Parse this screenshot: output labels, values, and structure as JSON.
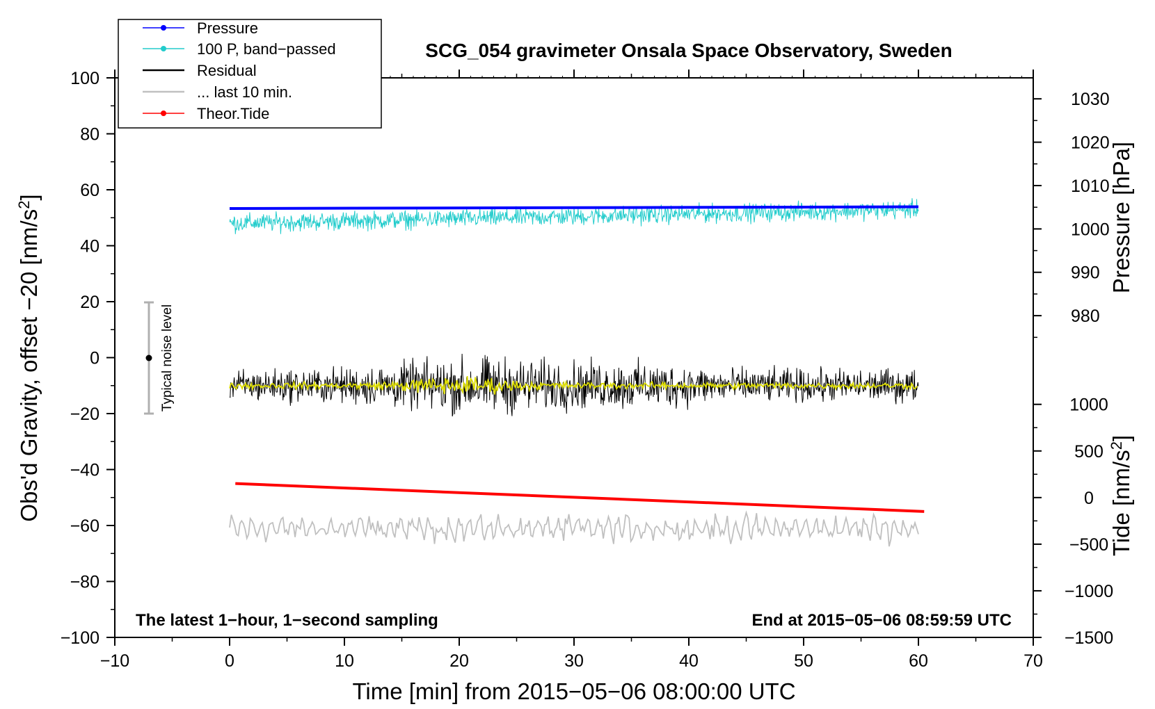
{
  "chart_data": {
    "type": "line",
    "title": "SCG_054 gravimeter Onsala Space Observatory, Sweden",
    "xlabel": "Time [min] from 2015−05−06 08:00:00 UTC",
    "ylabel_prefix": "Obs'd Gravity, offset −20 [nm/s",
    "ylabel_suffix": "]",
    "ylabel_sup": "2",
    "xlim": [
      -10,
      70
    ],
    "ylim": [
      -100,
      100
    ],
    "x_ticks": [
      -10,
      0,
      10,
      20,
      30,
      40,
      50,
      60,
      70
    ],
    "x_tick_labels": [
      "−10",
      "0",
      "10",
      "20",
      "30",
      "40",
      "50",
      "60",
      "70"
    ],
    "y_ticks": [
      -100,
      -80,
      -60,
      -40,
      -20,
      0,
      20,
      40,
      60,
      80,
      100
    ],
    "y_tick_labels": [
      "−100",
      "−80",
      "−60",
      "−40",
      "−20",
      "0",
      "20",
      "40",
      "60",
      "80",
      "100"
    ],
    "pressure_axis": {
      "label": "Pressure [hPa]",
      "ticks": [
        980,
        990,
        1000,
        1010,
        1020,
        1030
      ],
      "tick_labels": [
        "980",
        "990",
        "1000",
        "1010",
        "1020",
        "1030"
      ],
      "left_units_at": [
        {
          "p": 980,
          "y": 15
        },
        {
          "p": 1030,
          "y": 92.5
        }
      ]
    },
    "tide_axis": {
      "label_prefix": "Tide [nm/s",
      "label_suffix": "]",
      "label_sup": "2",
      "ticks": [
        -1500,
        -1000,
        -500,
        0,
        500,
        1000
      ],
      "tick_labels": [
        "−1500",
        "−1000",
        "−500",
        "0",
        "500",
        "1000"
      ],
      "left_units_at": [
        {
          "t": -1500,
          "y": -100
        },
        {
          "t": 1000,
          "y": -16.7
        }
      ]
    },
    "series": [
      {
        "name": "Pressure",
        "color": "#0000ff",
        "style": "line-dot",
        "x_range": [
          0,
          60
        ],
        "y_start": 53.3,
        "y_end": 53.9
      },
      {
        "name": "100 P, band−passed",
        "color": "#22cccc",
        "style": "line-dot",
        "x_range": [
          0,
          60
        ],
        "y_mean": 50,
        "y_min": 37,
        "y_max": 62
      },
      {
        "name": "Residual",
        "color": "#000000",
        "style": "line",
        "x_range": [
          0,
          60
        ],
        "y_mean": -10,
        "y_min": -27,
        "y_max": 5
      },
      {
        "name": "... last 10 min.",
        "color": "#c0c0c0",
        "style": "line",
        "x_range": [
          0,
          60
        ],
        "y_mean": -61,
        "y_min": -69,
        "y_max": -54
      },
      {
        "name": "Theor.Tide",
        "color": "#ff0000",
        "style": "line-dot",
        "x_range": [
          0.5,
          60.5
        ],
        "y_start": -45,
        "y_end": -55
      }
    ],
    "smoothed_residual": {
      "color": "#dddd00",
      "y_mean": -10
    },
    "noise_bar": {
      "label": "Typical noise level",
      "x": -7,
      "y_center": 0,
      "y_low": -20,
      "y_high": 20,
      "color": "#b0b0b0"
    },
    "annotations": {
      "left": "The latest 1−hour, 1−second sampling",
      "right": "End at 2015−05−06 08:59:59 UTC"
    },
    "legend_position": "top-left"
  }
}
